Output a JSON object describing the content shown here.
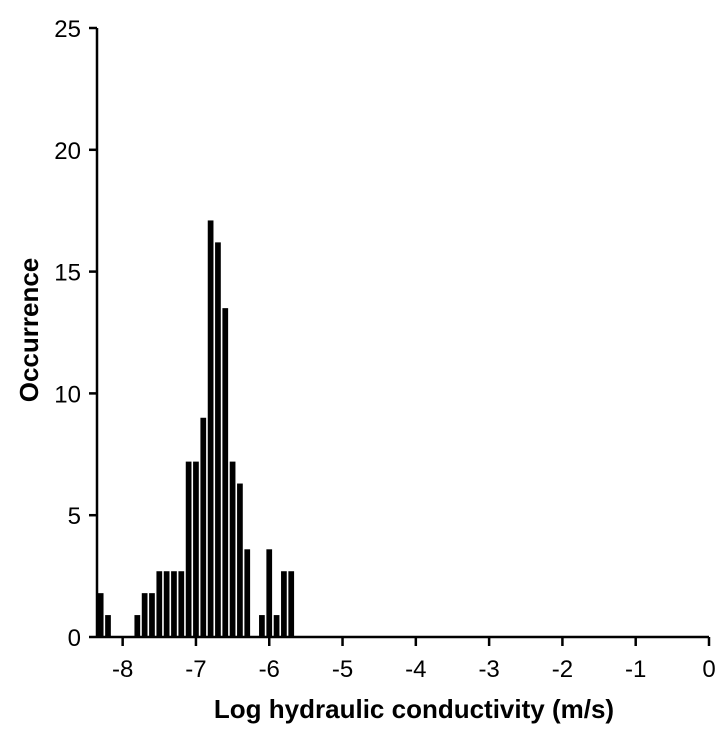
{
  "chart_data": {
    "type": "bar",
    "title": "",
    "xlabel": "Log hydraulic conductivity (m/s)",
    "ylabel": "Occurrence",
    "xlim": [
      -8.35,
      0
    ],
    "ylim": [
      0,
      25
    ],
    "bin_width": 0.1,
    "grid": false,
    "x_ticks": [
      -8,
      -7,
      -6,
      -5,
      -4,
      -3,
      -2,
      -1,
      0
    ],
    "x_tick_labels": [
      "-8",
      "-7",
      "-6",
      "-5",
      "-4",
      "-3",
      "-2",
      "-1",
      "0"
    ],
    "y_ticks": [
      0,
      5,
      10,
      15,
      20,
      25
    ],
    "y_tick_labels": [
      "0",
      "5",
      "10",
      "15",
      "20",
      "25"
    ],
    "bins": [
      {
        "x": -8.3,
        "value": 1.8
      },
      {
        "x": -8.2,
        "value": 0.9
      },
      {
        "x": -8.1,
        "value": 0
      },
      {
        "x": -8.0,
        "value": 0
      },
      {
        "x": -7.9,
        "value": 0
      },
      {
        "x": -7.8,
        "value": 0.9
      },
      {
        "x": -7.7,
        "value": 1.8
      },
      {
        "x": -7.6,
        "value": 1.8
      },
      {
        "x": -7.5,
        "value": 2.7
      },
      {
        "x": -7.4,
        "value": 2.7
      },
      {
        "x": -7.3,
        "value": 2.7
      },
      {
        "x": -7.2,
        "value": 2.7
      },
      {
        "x": -7.1,
        "value": 7.2
      },
      {
        "x": -7.0,
        "value": 7.2
      },
      {
        "x": -6.9,
        "value": 9
      },
      {
        "x": -6.8,
        "value": 17.1
      },
      {
        "x": -6.7,
        "value": 16.2
      },
      {
        "x": -6.6,
        "value": 13.5
      },
      {
        "x": -6.5,
        "value": 7.2
      },
      {
        "x": -6.4,
        "value": 6.3
      },
      {
        "x": -6.3,
        "value": 3.6
      },
      {
        "x": -6.2,
        "value": 0
      },
      {
        "x": -6.1,
        "value": 0.9
      },
      {
        "x": -6.0,
        "value": 3.6
      },
      {
        "x": -5.9,
        "value": 0.9
      },
      {
        "x": -5.8,
        "value": 2.7
      },
      {
        "x": -5.7,
        "value": 2.7
      }
    ]
  }
}
